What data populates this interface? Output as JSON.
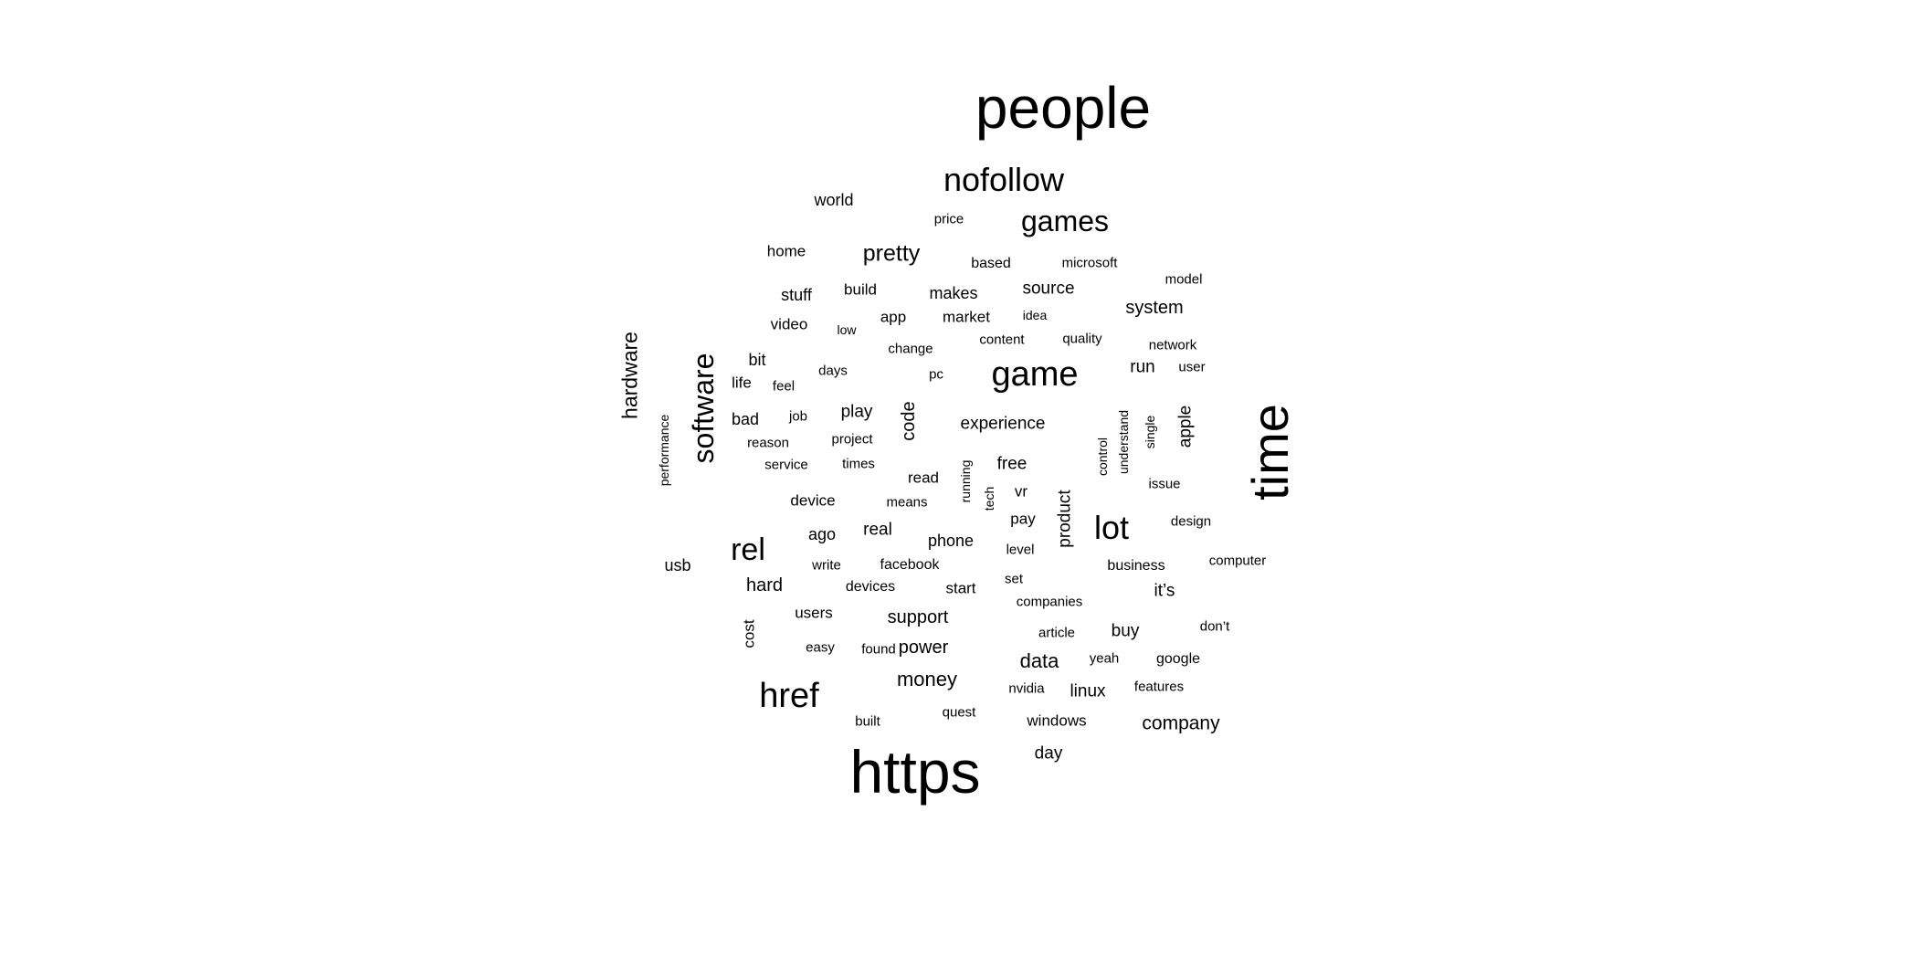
{
  "cloud": {
    "text_color": "#000000",
    "background": "#ffffff",
    "words": [
      "people",
      "nofollow",
      "games",
      "world",
      "price",
      "pretty",
      "home",
      "based",
      "microsoft",
      "model",
      "stuff",
      "build",
      "makes",
      "source",
      "system",
      "video",
      "low",
      "app",
      "market",
      "idea",
      "change",
      "content",
      "quality",
      "network",
      "hardware",
      "software",
      "bit",
      "days",
      "pc",
      "game",
      "run",
      "user",
      "life",
      "feel",
      "time",
      "performance",
      "bad",
      "job",
      "play",
      "code",
      "experience",
      "apple",
      "reason",
      "project",
      "understand",
      "single",
      "control",
      "service",
      "times",
      "read",
      "running",
      "free",
      "issue",
      "device",
      "means",
      "tech",
      "vr",
      "product",
      "pay",
      "design",
      "lot",
      "real",
      "ago",
      "phone",
      "rel",
      "usb",
      "write",
      "facebook",
      "level",
      "business",
      "computer",
      "hard",
      "devices",
      "start",
      "set",
      "it’s",
      "companies",
      "users",
      "support",
      "cost",
      "article",
      "buy",
      "don’t",
      "easy",
      "found",
      "power",
      "data",
      "yeah",
      "google",
      "money",
      "href",
      "nvidia",
      "linux",
      "features",
      "quest",
      "built",
      "windows",
      "company",
      "day",
      "https"
    ]
  }
}
